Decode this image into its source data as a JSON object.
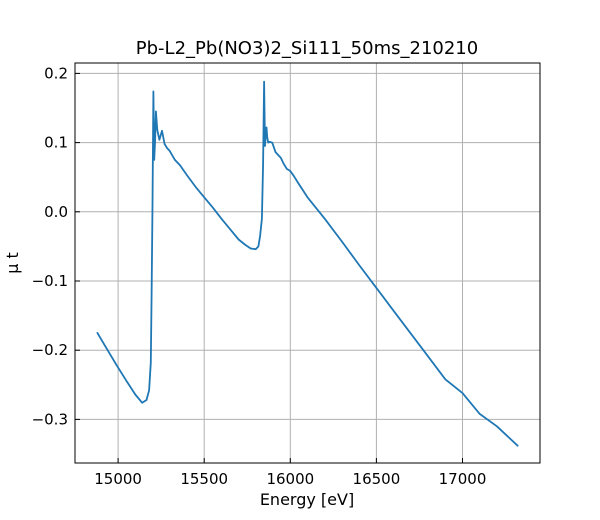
{
  "chart_data": {
    "type": "line",
    "title": "Pb-L2_Pb(NO3)2_Si111_50ms_210210",
    "xlabel": "Energy [eV]",
    "ylabel": "μ t",
    "xlim": [
      14750,
      17450
    ],
    "ylim": [
      -0.363,
      0.215
    ],
    "xticks": [
      15000,
      15500,
      16000,
      16500,
      17000
    ],
    "xtick_labels": [
      "15000",
      "15500",
      "16000",
      "16500",
      "17000"
    ],
    "yticks": [
      -0.3,
      -0.2,
      -0.1,
      0.0,
      0.1,
      0.2
    ],
    "ytick_labels": [
      "−0.3",
      "−0.2",
      "−0.1",
      "0.0",
      "0.1",
      "0.2"
    ],
    "grid": true,
    "tick_direction": "in",
    "series": [
      {
        "color": "#1f77b4",
        "x": [
          14880,
          14930,
          14990,
          15050,
          15100,
          15140,
          15165,
          15180,
          15190,
          15195,
          15200,
          15205,
          15210,
          15215,
          15220,
          15228,
          15240,
          15255,
          15270,
          15285,
          15300,
          15330,
          15360,
          15400,
          15450,
          15500,
          15550,
          15600,
          15650,
          15700,
          15740,
          15770,
          15800,
          15815,
          15825,
          15835,
          15842,
          15848,
          15853,
          15858,
          15862,
          15866,
          15872,
          15880,
          15895,
          15915,
          15930,
          15945,
          15960,
          15980,
          16000,
          16020,
          16050,
          16100,
          16200,
          16300,
          16400,
          16500,
          16600,
          16700,
          16800,
          16900,
          17000,
          17100,
          17200,
          17320
        ],
        "y": [
          -0.175,
          -0.196,
          -0.221,
          -0.245,
          -0.264,
          -0.276,
          -0.272,
          -0.258,
          -0.218,
          -0.12,
          0.01,
          0.174,
          0.075,
          0.103,
          0.145,
          0.118,
          0.104,
          0.117,
          0.098,
          0.092,
          0.088,
          0.075,
          0.067,
          0.053,
          0.036,
          0.021,
          0.006,
          -0.01,
          -0.025,
          -0.04,
          -0.048,
          -0.053,
          -0.054,
          -0.05,
          -0.035,
          -0.01,
          0.07,
          0.188,
          0.095,
          0.112,
          0.122,
          0.108,
          0.1,
          0.101,
          0.1,
          0.086,
          0.082,
          0.078,
          0.07,
          0.062,
          0.059,
          0.052,
          0.04,
          0.021,
          -0.01,
          -0.043,
          -0.077,
          -0.11,
          -0.143,
          -0.176,
          -0.209,
          -0.242,
          -0.262,
          -0.292,
          -0.31,
          -0.338
        ]
      }
    ]
  }
}
